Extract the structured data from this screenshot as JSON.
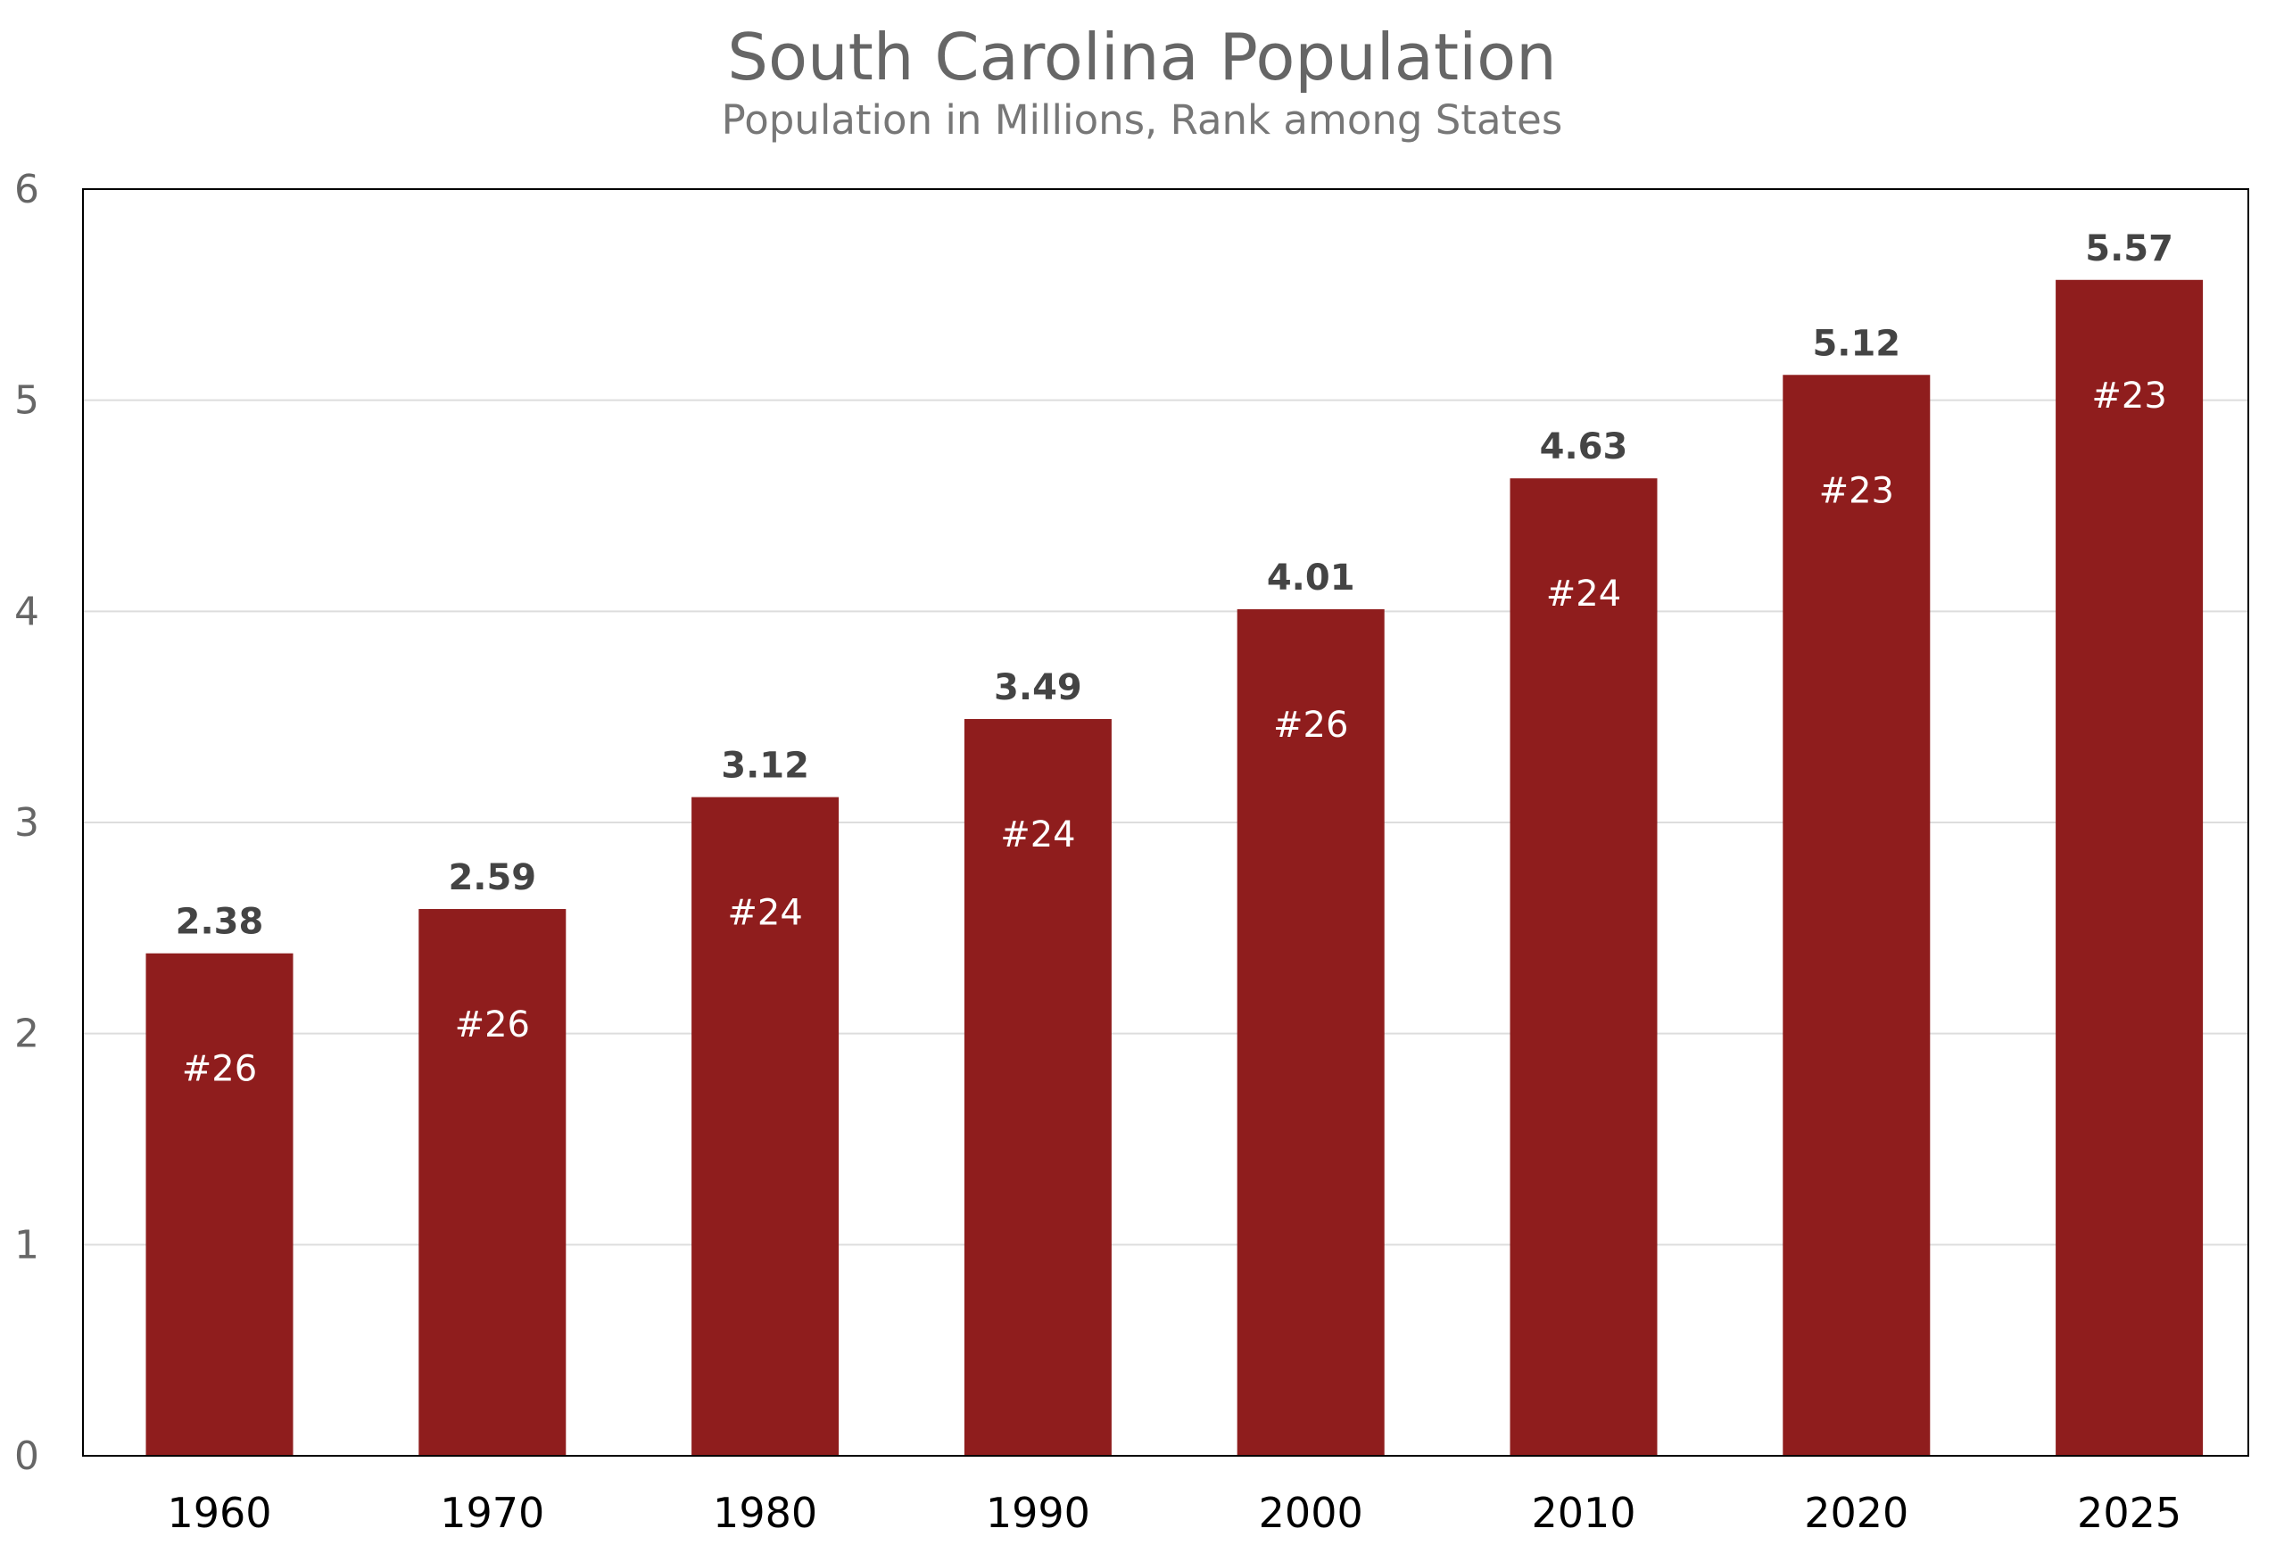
{
  "chart_data": {
    "type": "bar",
    "title": "South Carolina Population",
    "subtitle": "Population in Millions, Rank among States",
    "categories": [
      "1960",
      "1970",
      "1980",
      "1990",
      "2000",
      "2010",
      "2020",
      "2025"
    ],
    "values": [
      2.38,
      2.59,
      3.12,
      3.49,
      4.01,
      4.63,
      5.12,
      5.57
    ],
    "value_labels": [
      "2.38",
      "2.59",
      "3.12",
      "3.49",
      "4.01",
      "4.63",
      "5.12",
      "5.57"
    ],
    "rank_labels": [
      "#26",
      "#26",
      "#24",
      "#24",
      "#26",
      "#24",
      "#23",
      "#23"
    ],
    "ylim": [
      0,
      6
    ],
    "yticks": [
      "0",
      "1",
      "2",
      "3",
      "4",
      "5",
      "6"
    ],
    "xlabel": "",
    "ylabel": "",
    "grid": true,
    "legend": "none",
    "colors": {
      "bar": "#8f1d1d",
      "grid": "#dddddd",
      "frame": "#000000"
    }
  }
}
